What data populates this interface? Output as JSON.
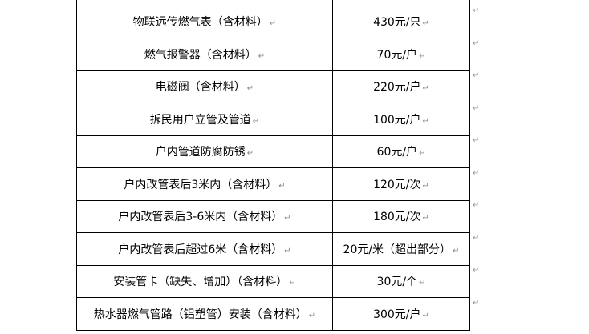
{
  "paragraph_mark": "↵",
  "rows": [
    {
      "item": "",
      "price": ""
    },
    {
      "item": "物联远传燃气表（含材料）",
      "price": "430元/只"
    },
    {
      "item": "燃气报警器（含材料）",
      "price": "70元/户"
    },
    {
      "item": "电磁阀（含材料）",
      "price": "220元/户"
    },
    {
      "item": "拆民用户立管及管道",
      "price": "100元/户"
    },
    {
      "item": "户内管道防腐防锈",
      "price": "60元/户"
    },
    {
      "item": "户内改管表后3米内（含材料）",
      "price": "120元/次"
    },
    {
      "item": "户内改管表后3-6米内（含材料）",
      "price": "180元/次"
    },
    {
      "item": "户内改管表后超过6米（含材料）",
      "price": "20元/米（超出部分）"
    },
    {
      "item": "安装管卡（缺失、增加）（含材料）",
      "price": "30元/个"
    },
    {
      "item": "热水器燃气管路（铝塑管）安装（含材料）",
      "price": "300元/户"
    }
  ]
}
